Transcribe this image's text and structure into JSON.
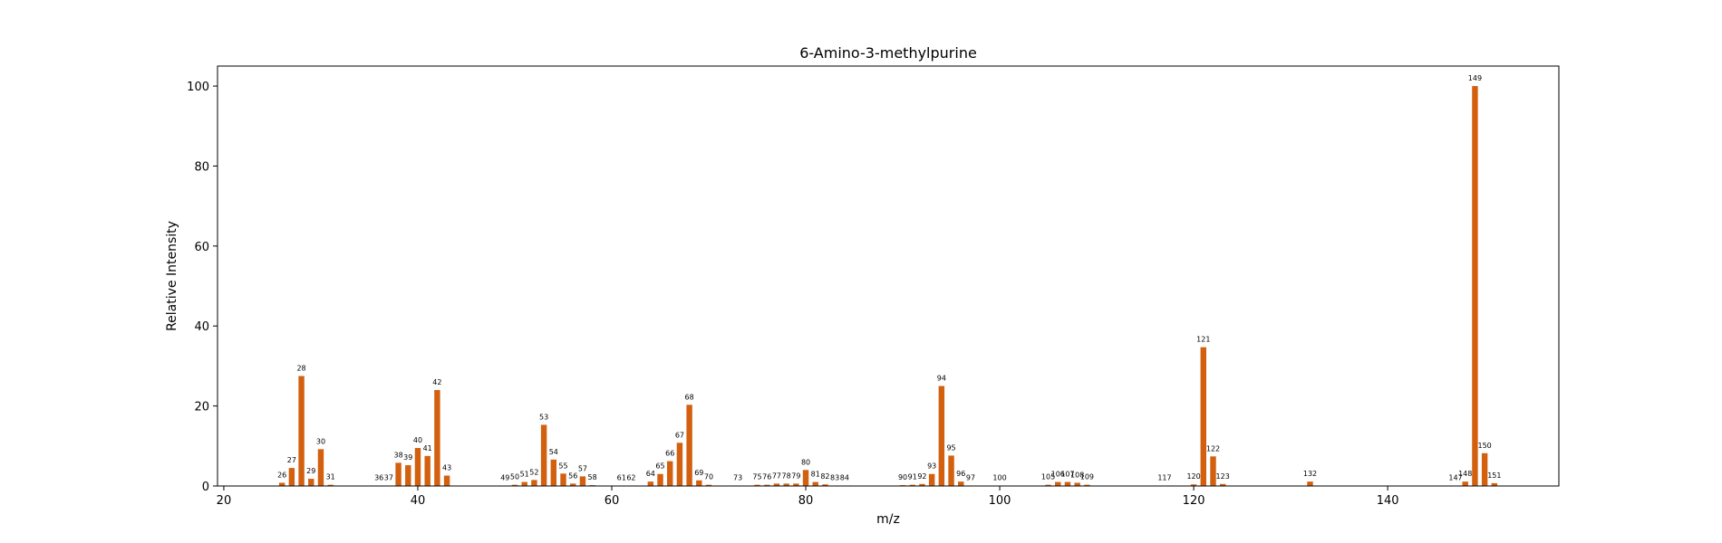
{
  "chart_data": {
    "type": "bar",
    "title": "6-Amino-3-methylpurine",
    "xlabel": "m/z",
    "ylabel": "Relative Intensity",
    "xlim": [
      19.35,
      157.65
    ],
    "ylim": [
      0,
      105
    ],
    "xticks": [
      20,
      40,
      60,
      80,
      100,
      120,
      140
    ],
    "yticks": [
      0,
      20,
      40,
      60,
      80,
      100
    ],
    "bar_color": "#d2600f",
    "grid": false,
    "legend": false,
    "x": [
      26,
      27,
      28,
      29,
      30,
      31,
      36,
      37,
      38,
      39,
      40,
      41,
      42,
      43,
      49,
      50,
      51,
      52,
      53,
      54,
      55,
      56,
      57,
      58,
      61,
      62,
      64,
      65,
      66,
      67,
      68,
      69,
      70,
      73,
      75,
      76,
      77,
      78,
      79,
      80,
      81,
      82,
      83,
      84,
      90,
      91,
      92,
      93,
      94,
      95,
      96,
      97,
      100,
      105,
      106,
      107,
      108,
      109,
      117,
      120,
      121,
      122,
      123,
      132,
      147,
      148,
      149,
      150,
      151
    ],
    "values": [
      0.8,
      4.5,
      27.5,
      1.8,
      9.2,
      0.3,
      0.1,
      0.1,
      5.8,
      5.2,
      9.5,
      7.5,
      24.0,
      2.6,
      0.1,
      0.3,
      1.0,
      1.5,
      15.3,
      6.6,
      3.1,
      0.6,
      2.4,
      0.2,
      0.1,
      0.1,
      1.1,
      3.0,
      6.2,
      10.8,
      20.3,
      1.4,
      0.3,
      0.1,
      0.3,
      0.3,
      0.6,
      0.6,
      0.6,
      4.0,
      1.0,
      0.4,
      0.1,
      0.1,
      0.2,
      0.3,
      0.5,
      3.0,
      25.0,
      7.6,
      1.1,
      0.1,
      0.1,
      0.3,
      1.0,
      1.0,
      0.8,
      0.3,
      0.1,
      0.4,
      34.7,
      7.4,
      0.5,
      1.1,
      0.1,
      1.1,
      100,
      8.2,
      0.7
    ]
  }
}
